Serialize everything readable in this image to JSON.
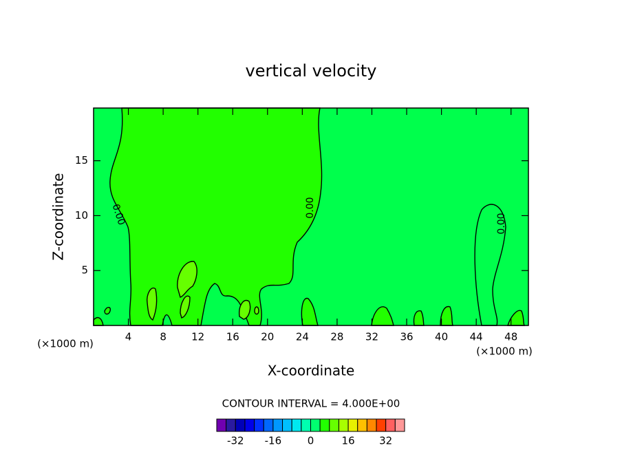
{
  "chart_data": {
    "type": "contour",
    "title": "vertical velocity",
    "x_label": "X-coordinate",
    "y_label": "Z-coordinate",
    "x_unit_label": "(×1000 m)",
    "y_unit_label": "(×1000 m)",
    "xlim": [
      0,
      50
    ],
    "ylim": [
      0,
      19.8
    ],
    "xticks": [
      4,
      8,
      12,
      16,
      20,
      24,
      28,
      32,
      36,
      40,
      44,
      48
    ],
    "yticks": [
      5,
      10,
      15
    ],
    "contour_labels": [
      "0.00",
      "0.00",
      "0.00"
    ],
    "contour_interval_text": "CONTOUR INTERVAL = 4.000E+00",
    "colorbar": {
      "lim": [
        -40,
        40
      ],
      "ticks": [
        -32,
        -16,
        0,
        16,
        32
      ],
      "colors": [
        "#7000b0",
        "#2a1aa0",
        "#0000b8",
        "#0000e8",
        "#0030ff",
        "#0068ff",
        "#0098ff",
        "#00c0ff",
        "#00e8f0",
        "#00ffb0",
        "#00ff70",
        "#22ff00",
        "#66ff00",
        "#a8ff00",
        "#e8f000",
        "#ffc000",
        "#ff8800",
        "#ff4000",
        "#ff6060",
        "#ff9898"
      ]
    }
  }
}
